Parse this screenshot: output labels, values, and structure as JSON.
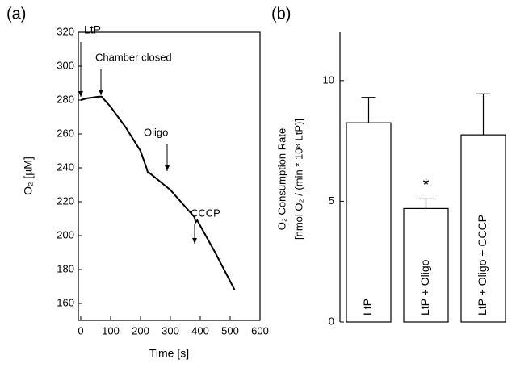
{
  "chart_data": [
    {
      "type": "line",
      "panel": "(a)",
      "x_label": "Time [s]",
      "y_label": "O₂ [µM]",
      "x": [
        0,
        20,
        40,
        60,
        70,
        100,
        150,
        200,
        220,
        225,
        230,
        300,
        380,
        385,
        390,
        450,
        515
      ],
      "series": [
        {
          "name": "O₂",
          "color": "#000000",
          "values": [
            280,
            281,
            281.5,
            282,
            282,
            276,
            264,
            250,
            240,
            237,
            237,
            227,
            211,
            208,
            209,
            190,
            168
          ]
        }
      ],
      "xlim": [
        -8,
        600
      ],
      "xticks": [
        0,
        100,
        200,
        300,
        400,
        500,
        600
      ],
      "ylim": [
        150,
        320
      ],
      "yticks": [
        160,
        180,
        200,
        220,
        240,
        260,
        280,
        300,
        320
      ],
      "annotations": [
        "LtP",
        "Chamber closed",
        "Oligo",
        "CCCP"
      ]
    },
    {
      "type": "bar",
      "panel": "(b)",
      "y_label": [
        "O₂ Consumption Rate",
        "[nmol O₂ / (min * 10⁸ LtP)]"
      ],
      "categories": [
        "LtP",
        "LtP + Oligo",
        "LtP + Oligo + CCCP"
      ],
      "values": [
        8.25,
        4.7,
        7.75
      ],
      "errors": [
        1.05,
        0.4,
        1.7
      ],
      "color": "#ffffff",
      "ylim": [
        0,
        12
      ],
      "yticks": [
        0,
        5,
        10
      ],
      "annotations": [
        "*"
      ]
    }
  ]
}
